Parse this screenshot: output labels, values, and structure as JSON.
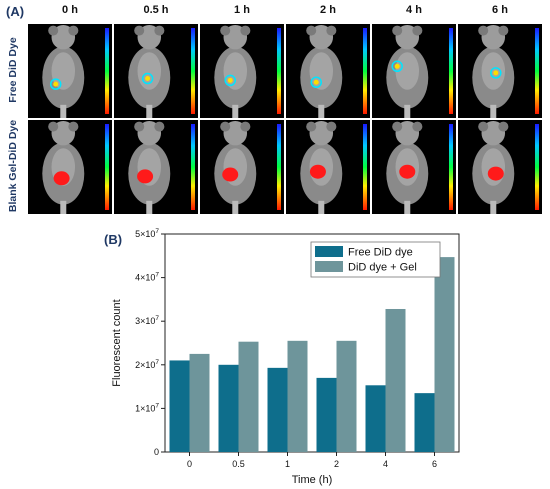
{
  "panel_a": {
    "label": "(A)",
    "timepoints": [
      "0 h",
      "0.5 h",
      "1 h",
      "2 h",
      "4 h",
      "6 h"
    ],
    "rows": [
      {
        "label": "Free DiD Dye",
        "signal": "small-rainbow-spot"
      },
      {
        "label": "Blank Gel-DiD Dye",
        "signal": "red-spot"
      }
    ]
  },
  "panel_b": {
    "label": "(B)"
  },
  "chart_data": {
    "type": "bar",
    "categories": [
      "0",
      "0.5",
      "1",
      "2",
      "4",
      "6"
    ],
    "series": [
      {
        "name": "Free DiD dye",
        "color": "#0e6e8c",
        "values": [
          2.1,
          2.0,
          1.93,
          1.7,
          1.53,
          1.35
        ]
      },
      {
        "name": "DiD dye + Gel",
        "color": "#6e959b",
        "values": [
          2.25,
          2.53,
          2.55,
          2.55,
          3.28,
          4.47
        ]
      }
    ],
    "value_unit_multiplier": "10^7",
    "xlabel": "Time (h)",
    "ylabel": "Fluorescent count",
    "ylim": [
      0,
      5
    ],
    "yticks": [
      {
        "value": 0,
        "label": "0"
      },
      {
        "value": 1,
        "label": "1×10^7"
      },
      {
        "value": 2,
        "label": "2×10^7"
      },
      {
        "value": 3,
        "label": "3×10^7"
      },
      {
        "value": 4,
        "label": "4×10^7"
      },
      {
        "value": 5,
        "label": "5×10^7"
      }
    ],
    "legend_position": "top-right",
    "grid": false
  }
}
